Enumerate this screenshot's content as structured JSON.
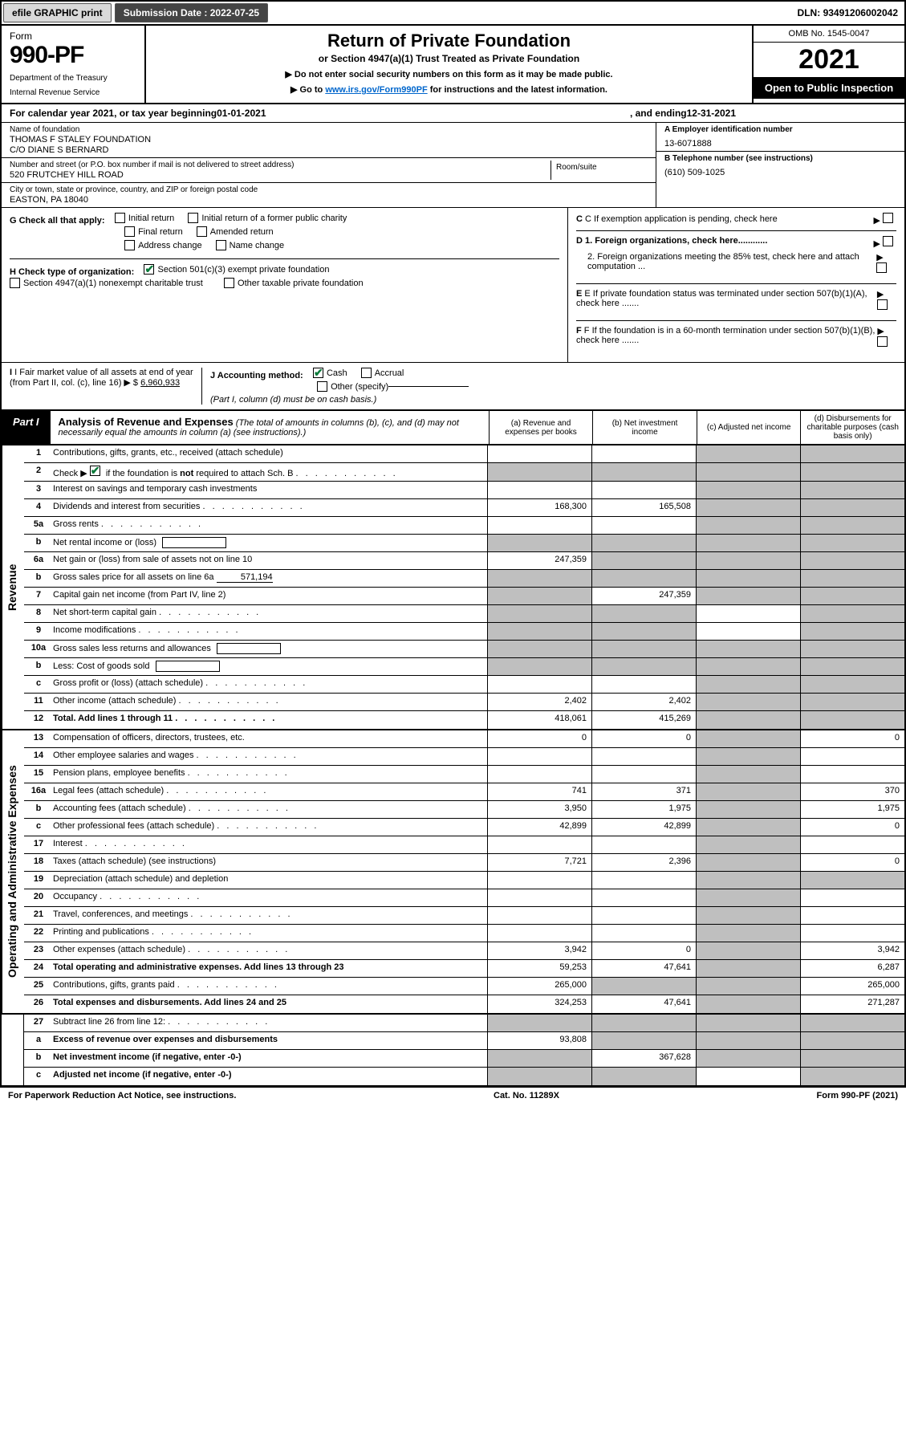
{
  "topbar": {
    "efile": "efile GRAPHIC print",
    "submission_label": "Submission Date :",
    "submission_date": "2022-07-25",
    "dln_label": "DLN:",
    "dln": "93491206002042"
  },
  "header": {
    "form_label": "Form",
    "form_number": "990-PF",
    "dept1": "Department of the Treasury",
    "dept2": "Internal Revenue Service",
    "title": "Return of Private Foundation",
    "subtitle": "or Section 4947(a)(1) Trust Treated as Private Foundation",
    "instr1": "▶ Do not enter social security numbers on this form as it may be made public.",
    "instr2_pre": "▶ Go to ",
    "instr2_link": "www.irs.gov/Form990PF",
    "instr2_post": " for instructions and the latest information.",
    "omb": "OMB No. 1545-0047",
    "year": "2021",
    "open_public": "Open to Public Inspection"
  },
  "calyear": {
    "prefix": "For calendar year 2021, or tax year beginning ",
    "begin": "01-01-2021",
    "mid": ", and ending ",
    "end": "12-31-2021"
  },
  "entity": {
    "name_label": "Name of foundation",
    "name1": "THOMAS F STALEY FOUNDATION",
    "name2": "C/O DIANE S BERNARD",
    "street_label": "Number and street (or P.O. box number if mail is not delivered to street address)",
    "street": "520 FRUTCHEY HILL ROAD",
    "room_label": "Room/suite",
    "city_label": "City or town, state or province, country, and ZIP or foreign postal code",
    "city": "EASTON, PA  18040",
    "ein_label": "A Employer identification number",
    "ein": "13-6071888",
    "phone_label": "B Telephone number (see instructions)",
    "phone": "(610) 509-1025",
    "c_label": "C If exemption application is pending, check here"
  },
  "checks": {
    "g_label": "G Check all that apply:",
    "g_items": [
      "Initial return",
      "Initial return of a former public charity",
      "Final return",
      "Amended return",
      "Address change",
      "Name change"
    ],
    "h_label": "H Check type of organization:",
    "h1": "Section 501(c)(3) exempt private foundation",
    "h2": "Section 4947(a)(1) nonexempt charitable trust",
    "h3": "Other taxable private foundation",
    "i_label": "I Fair market value of all assets at end of year (from Part II, col. (c), line 16) ▶ $",
    "i_value": "6,960,933",
    "j_label": "J Accounting method:",
    "j_cash": "Cash",
    "j_accrual": "Accrual",
    "j_other": "Other (specify)",
    "j_note": "(Part I, column (d) must be on cash basis.)",
    "d1": "D 1. Foreign organizations, check here............",
    "d2": "2. Foreign organizations meeting the 85% test, check here and attach computation ...",
    "e": "E If private foundation status was terminated under section 507(b)(1)(A), check here .......",
    "f": "F If the foundation is in a 60-month termination under section 507(b)(1)(B), check here ......."
  },
  "part1": {
    "label": "Part I",
    "title": "Analysis of Revenue and Expenses",
    "title_note": "(The total of amounts in columns (b), (c), and (d) may not necessarily equal the amounts in column (a) (see instructions).)",
    "col_a": "(a) Revenue and expenses per books",
    "col_b": "(b) Net investment income",
    "col_c": "(c) Adjusted net income",
    "col_d": "(d) Disbursements for charitable purposes (cash basis only)"
  },
  "revenue_label": "Revenue",
  "expenses_label": "Operating and Administrative Expenses",
  "lines": {
    "1": {
      "num": "1",
      "desc": "Contributions, gifts, grants, etc., received (attach schedule)"
    },
    "2": {
      "num": "2",
      "desc": "Check ▶",
      "desc2": "if the foundation is not required to attach Sch. B",
      "checked": true
    },
    "3": {
      "num": "3",
      "desc": "Interest on savings and temporary cash investments"
    },
    "4": {
      "num": "4",
      "desc": "Dividends and interest from securities",
      "a": "168,300",
      "b": "165,508"
    },
    "5a": {
      "num": "5a",
      "desc": "Gross rents"
    },
    "5b": {
      "num": "b",
      "desc": "Net rental income or (loss)"
    },
    "6a": {
      "num": "6a",
      "desc": "Net gain or (loss) from sale of assets not on line 10",
      "a": "247,359"
    },
    "6b": {
      "num": "b",
      "desc": "Gross sales price for all assets on line 6a",
      "inline": "571,194"
    },
    "7": {
      "num": "7",
      "desc": "Capital gain net income (from Part IV, line 2)",
      "b": "247,359"
    },
    "8": {
      "num": "8",
      "desc": "Net short-term capital gain"
    },
    "9": {
      "num": "9",
      "desc": "Income modifications"
    },
    "10a": {
      "num": "10a",
      "desc": "Gross sales less returns and allowances"
    },
    "10b": {
      "num": "b",
      "desc": "Less: Cost of goods sold"
    },
    "10c": {
      "num": "c",
      "desc": "Gross profit or (loss) (attach schedule)"
    },
    "11": {
      "num": "11",
      "desc": "Other income (attach schedule)",
      "a": "2,402",
      "b": "2,402"
    },
    "12": {
      "num": "12",
      "desc": "Total. Add lines 1 through 11",
      "a": "418,061",
      "b": "415,269",
      "bold": true
    },
    "13": {
      "num": "13",
      "desc": "Compensation of officers, directors, trustees, etc.",
      "a": "0",
      "b": "0",
      "d": "0"
    },
    "14": {
      "num": "14",
      "desc": "Other employee salaries and wages"
    },
    "15": {
      "num": "15",
      "desc": "Pension plans, employee benefits"
    },
    "16a": {
      "num": "16a",
      "desc": "Legal fees (attach schedule)",
      "a": "741",
      "b": "371",
      "d": "370"
    },
    "16b": {
      "num": "b",
      "desc": "Accounting fees (attach schedule)",
      "a": "3,950",
      "b": "1,975",
      "d": "1,975"
    },
    "16c": {
      "num": "c",
      "desc": "Other professional fees (attach schedule)",
      "a": "42,899",
      "b": "42,899",
      "d": "0"
    },
    "17": {
      "num": "17",
      "desc": "Interest"
    },
    "18": {
      "num": "18",
      "desc": "Taxes (attach schedule) (see instructions)",
      "a": "7,721",
      "b": "2,396",
      "d": "0"
    },
    "19": {
      "num": "19",
      "desc": "Depreciation (attach schedule) and depletion"
    },
    "20": {
      "num": "20",
      "desc": "Occupancy"
    },
    "21": {
      "num": "21",
      "desc": "Travel, conferences, and meetings"
    },
    "22": {
      "num": "22",
      "desc": "Printing and publications"
    },
    "23": {
      "num": "23",
      "desc": "Other expenses (attach schedule)",
      "a": "3,942",
      "b": "0",
      "d": "3,942"
    },
    "24": {
      "num": "24",
      "desc": "Total operating and administrative expenses. Add lines 13 through 23",
      "a": "59,253",
      "b": "47,641",
      "d": "6,287",
      "bold": true
    },
    "25": {
      "num": "25",
      "desc": "Contributions, gifts, grants paid",
      "a": "265,000",
      "d": "265,000"
    },
    "26": {
      "num": "26",
      "desc": "Total expenses and disbursements. Add lines 24 and 25",
      "a": "324,253",
      "b": "47,641",
      "d": "271,287",
      "bold": true
    },
    "27": {
      "num": "27",
      "desc": "Subtract line 26 from line 12:"
    },
    "27a": {
      "num": "a",
      "desc": "Excess of revenue over expenses and disbursements",
      "a": "93,808",
      "bold": true
    },
    "27b": {
      "num": "b",
      "desc": "Net investment income (if negative, enter -0-)",
      "b": "367,628",
      "bold": true
    },
    "27c": {
      "num": "c",
      "desc": "Adjusted net income (if negative, enter -0-)",
      "bold": true
    }
  },
  "footer": {
    "left": "For Paperwork Reduction Act Notice, see instructions.",
    "mid": "Cat. No. 11289X",
    "right": "Form 990-PF (2021)"
  }
}
